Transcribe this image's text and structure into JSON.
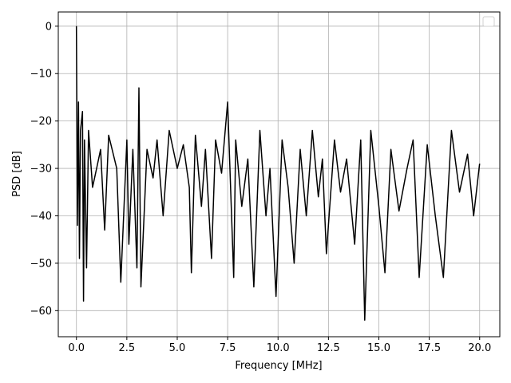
{
  "chart_data": {
    "type": "line",
    "title": "",
    "xlabel": "Frequency [MHz]",
    "ylabel": "PSD [dB]",
    "xlim": [
      -0.9,
      21.0
    ],
    "ylim": [
      -65.5,
      3.0
    ],
    "xticks": [
      0.0,
      2.5,
      5.0,
      7.5,
      10.0,
      12.5,
      15.0,
      17.5,
      20.0
    ],
    "xtick_labels": [
      "0.0",
      "2.5",
      "5.0",
      "7.5",
      "10.0",
      "12.5",
      "15.0",
      "17.5",
      "20.0"
    ],
    "yticks": [
      0,
      -10,
      -20,
      -30,
      -40,
      -50,
      -60
    ],
    "ytick_labels": [
      "0",
      "−10",
      "−20",
      "−30",
      "−40",
      "−50",
      "−60"
    ],
    "grid": true,
    "legend": "top-right (empty)",
    "colors": {
      "line": "#000000",
      "grid": "#b0b0b0",
      "axes": "#000000",
      "background": "#ffffff"
    },
    "series": [
      {
        "x": [
          0.0,
          0.05,
          0.1,
          0.15,
          0.2,
          0.3,
          0.35,
          0.4,
          0.5,
          0.6,
          0.8,
          1.0,
          1.2,
          1.4,
          1.6,
          2.0,
          2.2,
          2.5,
          2.6,
          2.8,
          3.0,
          3.1,
          3.2,
          3.5,
          3.8,
          4.0,
          4.3,
          4.6,
          5.0,
          5.3,
          5.6,
          5.7,
          5.9,
          6.2,
          6.4,
          6.7,
          6.9,
          7.2,
          7.5,
          7.8,
          7.9,
          8.2,
          8.5,
          8.8,
          9.1,
          9.4,
          9.6,
          9.9,
          10.2,
          10.5,
          10.8,
          11.1,
          11.4,
          11.7,
          12.0,
          12.2,
          12.4,
          12.8,
          13.1,
          13.4,
          13.8,
          14.1,
          14.3,
          14.6,
          15.0,
          15.3,
          15.6,
          16.0,
          16.4,
          16.7,
          17.0,
          17.4,
          17.8,
          18.2,
          18.6,
          19.0,
          19.4,
          19.7,
          20.0
        ],
        "values": [
          0,
          -42,
          -16,
          -49,
          -22,
          -18,
          -58,
          -24,
          -51,
          -22,
          -34,
          -30,
          -26,
          -43,
          -23,
          -30,
          -54,
          -24,
          -46,
          -26,
          -51,
          -13,
          -55,
          -26,
          -32,
          -24,
          -40,
          -22,
          -30,
          -25,
          -34,
          -52,
          -23,
          -38,
          -26,
          -49,
          -24,
          -31,
          -16,
          -53,
          -24,
          -38,
          -28,
          -55,
          -22,
          -40,
          -30,
          -57,
          -24,
          -34,
          -50,
          -26,
          -40,
          -22,
          -36,
          -28,
          -48,
          -24,
          -35,
          -28,
          -46,
          -24,
          -62,
          -22,
          -38,
          -52,
          -26,
          -39,
          -30,
          -24,
          -53,
          -25,
          -40,
          -53,
          -22,
          -35,
          -27,
          -40,
          -29
        ]
      }
    ]
  }
}
